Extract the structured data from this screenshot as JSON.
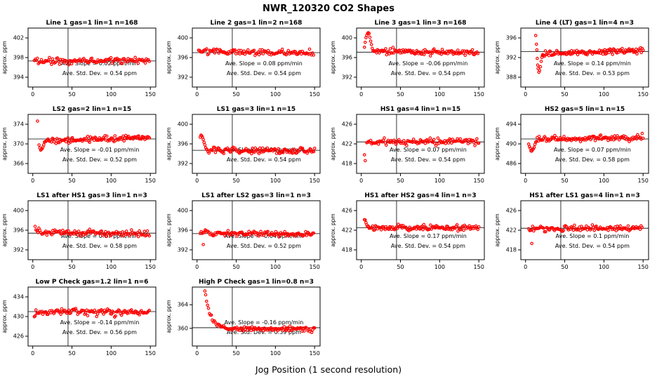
{
  "chart_data": {
    "type": "scatter",
    "title": "NWR_120320  CO2 Shapes",
    "xlabel": "Jog Position (1 second resolution)",
    "ylabel": "approx. ppm",
    "x_ticks": [
      0,
      50,
      100,
      150
    ],
    "xlim": [
      -6,
      157
    ],
    "vline_x": 45,
    "point_color": "#ff0000",
    "grid": false,
    "panels": [
      {
        "title": "Line 1 gas=1 lin=1 n=168",
        "slope_label": "Ave. Slope =  0.02  ppm/min",
        "sd_label": "Ave. Std. Dev. =  0.54  ppm",
        "slope": 0.02,
        "sd": 0.54,
        "ylim": [
          392,
          404
        ],
        "yticks": [
          394,
          398,
          402
        ],
        "hline": 397.3,
        "profile": [
          [
            2,
            397.2
          ],
          [
            150,
            397.4
          ]
        ],
        "outliers": []
      },
      {
        "title": "Line 2 gas=1 lin=2 n=168",
        "slope_label": "Ave. Slope =  0.08  ppm/min",
        "sd_label": "Ave. Std. Dev. =  0.54  ppm",
        "slope": 0.08,
        "sd": 0.54,
        "ylim": [
          390,
          402
        ],
        "yticks": [
          392,
          396,
          400
        ],
        "hline": 397.0,
        "profile": [
          [
            2,
            397.3
          ],
          [
            150,
            396.9
          ]
        ],
        "outliers": []
      },
      {
        "title": "Line 3 gas=1 lin=3 n=168",
        "slope_label": "Ave. Slope =  -0.06  ppm/min",
        "sd_label": "Ave. Std. Dev. =  0.54  ppm",
        "slope": -0.06,
        "sd": 0.54,
        "ylim": [
          390,
          402
        ],
        "yticks": [
          392,
          396,
          400
        ],
        "hline": 397.1,
        "profile": [
          [
            16,
            397.3
          ],
          [
            150,
            396.9
          ]
        ],
        "outliers": [
          [
            4,
            398.2
          ],
          [
            5,
            399.0
          ],
          [
            6,
            399.9
          ],
          [
            7,
            400.5
          ],
          [
            8,
            400.9
          ],
          [
            9,
            401.0
          ],
          [
            10,
            400.8
          ],
          [
            11,
            400.3
          ],
          [
            12,
            399.5
          ],
          [
            13,
            398.6
          ],
          [
            14,
            397.8
          ],
          [
            15,
            397.3
          ]
        ]
      },
      {
        "title": "Line 4 (LT) gas=1 lin=4 n=3",
        "slope_label": "Ave. Slope =  0.14  ppm/min",
        "sd_label": "Ave. Std. Dev. =  0.53  ppm",
        "slope": 0.14,
        "sd": 0.53,
        "ylim": [
          386,
          398
        ],
        "yticks": [
          388,
          392,
          396
        ],
        "hline": 393.2,
        "profile": [
          [
            22,
            392.8
          ],
          [
            150,
            393.5
          ]
        ],
        "outliers": [
          [
            13,
            396.4
          ],
          [
            14,
            394.8
          ],
          [
            14.5,
            393.5
          ],
          [
            15,
            391.8
          ],
          [
            15.5,
            390.6
          ],
          [
            16,
            389.6
          ],
          [
            17,
            389.0
          ],
          [
            18,
            389.4
          ],
          [
            19,
            390.2
          ],
          [
            20,
            391.2
          ],
          [
            21,
            392.0
          ],
          [
            21.5,
            392.5
          ]
        ]
      },
      {
        "title": "LS2 gas=2 lin=1 n=15",
        "slope_label": "Ave. Slope =  -0.01  ppm/min",
        "sd_label": "Ave. Std. Dev. =  0.52  ppm",
        "slope": -0.01,
        "sd": 0.52,
        "ylim": [
          364,
          376
        ],
        "yticks": [
          366,
          370,
          374
        ],
        "hline": 371.0,
        "profile": [
          [
            17,
            370.6
          ],
          [
            150,
            371.3
          ]
        ],
        "outliers": [
          [
            6,
            374.7
          ],
          [
            8,
            369.8
          ],
          [
            9,
            369.0
          ],
          [
            10,
            368.7
          ],
          [
            11,
            368.7
          ],
          [
            12,
            369.0
          ],
          [
            13,
            369.4
          ],
          [
            14,
            369.9
          ],
          [
            15,
            370.2
          ],
          [
            16,
            370.4
          ]
        ]
      },
      {
        "title": "LS1 gas=3 lin=1 n=15",
        "slope_label": "Ave. Slope =  -0.02  ppm/min",
        "sd_label": "Ave. Std. Dev. =  0.54  ppm",
        "slope": -0.02,
        "sd": 0.54,
        "ylim": [
          390,
          402
        ],
        "yticks": [
          392,
          396,
          400
        ],
        "hline": 394.7,
        "profile": [
          [
            14,
            394.7
          ],
          [
            150,
            394.5
          ]
        ],
        "outliers": [
          [
            4,
            397.5
          ],
          [
            5,
            397.6
          ],
          [
            6,
            397.5
          ],
          [
            7,
            397.3
          ],
          [
            8,
            396.9
          ],
          [
            9,
            396.3
          ],
          [
            10,
            395.7
          ],
          [
            11,
            395.2
          ],
          [
            12,
            394.9
          ],
          [
            13,
            394.8
          ]
        ]
      },
      {
        "title": "HS1 gas=4 lin=1 n=15",
        "slope_label": "Ave. Slope =  0.07  ppm/min",
        "sd_label": "Ave. Std. Dev. =  0.54  ppm",
        "slope": 0.07,
        "sd": 0.54,
        "ylim": [
          416,
          428
        ],
        "yticks": [
          418,
          422,
          426
        ],
        "hline": 422.4,
        "profile": [
          [
            7,
            422.3
          ],
          [
            150,
            422.6
          ]
        ],
        "outliers": [
          [
            4,
            419.7
          ],
          [
            5,
            418.5
          ]
        ]
      },
      {
        "title": "HS2 gas=5 lin=1 n=15",
        "slope_label": "Ave. Slope =  0.07  ppm/min",
        "sd_label": "Ave. Std. Dev. =  0.58  ppm",
        "slope": 0.07,
        "sd": 0.58,
        "ylim": [
          484,
          496
        ],
        "yticks": [
          486,
          490,
          494
        ],
        "hline": 491.0,
        "profile": [
          [
            15,
            490.8
          ],
          [
            150,
            491.3
          ]
        ],
        "outliers": [
          [
            4,
            490.0
          ],
          [
            5,
            489.4
          ],
          [
            6,
            489.0
          ],
          [
            7,
            488.7
          ],
          [
            8,
            488.6
          ],
          [
            9,
            488.8
          ],
          [
            10,
            489.1
          ],
          [
            11,
            489.5
          ],
          [
            12,
            489.9
          ],
          [
            13,
            490.3
          ],
          [
            14,
            490.6
          ]
        ]
      },
      {
        "title": "LS1 after HS1 gas=3 lin=1 n=3",
        "slope_label": "Ave. Slope =  0.07  ppm/min",
        "sd_label": "Ave. Std. Dev. =  0.58  ppm",
        "slope": 0.07,
        "sd": 0.58,
        "ylim": [
          390,
          402
        ],
        "yticks": [
          392,
          396,
          400
        ],
        "hline": 395.4,
        "profile": [
          [
            4,
            395.6
          ],
          [
            150,
            395.3
          ]
        ],
        "outliers": [
          [
            3,
            396.6
          ]
        ]
      },
      {
        "title": "LS1 after LS2 gas=3 lin=1 n=3",
        "slope_label": "Ave. Slope =  -0.04  ppm/min",
        "sd_label": "Ave. Std. Dev. =  0.52  ppm",
        "slope": -0.04,
        "sd": 0.52,
        "ylim": [
          390,
          402
        ],
        "yticks": [
          392,
          396,
          400
        ],
        "hline": 395.3,
        "profile": [
          [
            4,
            395.4
          ],
          [
            150,
            395.2
          ]
        ],
        "outliers": [
          [
            8,
            392.9
          ]
        ]
      },
      {
        "title": "HS1 after HS2 gas=4 lin=1 n=3",
        "slope_label": "Ave. Slope =  0.17  ppm/min",
        "sd_label": "Ave. Std. Dev. =  0.54  ppm",
        "slope": 0.17,
        "sd": 0.54,
        "ylim": [
          416,
          428
        ],
        "yticks": [
          418,
          422,
          426
        ],
        "hline": 422.5,
        "profile": [
          [
            11,
            422.4
          ],
          [
            150,
            422.5
          ]
        ],
        "outliers": [
          [
            4,
            424.2
          ],
          [
            5,
            423.9
          ],
          [
            6,
            423.6
          ],
          [
            7,
            423.2
          ],
          [
            8,
            422.9
          ],
          [
            9,
            422.7
          ],
          [
            10,
            422.5
          ]
        ]
      },
      {
        "title": "HS1 after LS1 gas=4 lin=1 n=3",
        "slope_label": "Ave. Slope =  0.1  ppm/min",
        "sd_label": "Ave. Std. Dev. =  0.54  ppm",
        "slope": 0.1,
        "sd": 0.54,
        "ylim": [
          416,
          428
        ],
        "yticks": [
          418,
          422,
          426
        ],
        "hline": 422.4,
        "profile": [
          [
            4,
            422.3
          ],
          [
            150,
            422.5
          ]
        ],
        "outliers": [
          [
            8,
            419.2
          ]
        ]
      },
      {
        "title": "Low P Check gas=1.2 lin=1 n=6",
        "slope_label": "Ave. Slope =  -0.14  ppm/min",
        "sd_label": "Ave. Std. Dev. =  0.56  ppm",
        "slope": -0.14,
        "sd": 0.56,
        "ylim": [
          424,
          436
        ],
        "yticks": [
          426,
          430,
          434
        ],
        "hline": 431.0,
        "profile": [
          [
            4,
            430.9
          ],
          [
            150,
            430.8
          ]
        ],
        "outliers": [
          [
            2,
            429.9
          ],
          [
            3,
            430.3
          ]
        ]
      },
      {
        "title": "High P Check gas=1 lin=0.8 n=3",
        "slope_label": "Ave. Slope =  -0.16  ppm/min",
        "sd_label": "Ave. Std. Dev. =  0.39  ppm",
        "slope": -0.16,
        "sd": 0.39,
        "ylim": [
          357,
          367
        ],
        "yticks": [
          360,
          364
        ],
        "hline": 360.1,
        "profile": [
          [
            11,
            365.8
          ],
          [
            13,
            364.3
          ],
          [
            15,
            363.2
          ],
          [
            17,
            362.4
          ],
          [
            19,
            361.7
          ],
          [
            22,
            361.1
          ],
          [
            25,
            360.7
          ],
          [
            29,
            360.4
          ],
          [
            34,
            360.1
          ],
          [
            40,
            359.9
          ],
          [
            150,
            359.9
          ]
        ],
        "outliers": [
          [
            10,
            366.3
          ]
        ]
      }
    ]
  }
}
